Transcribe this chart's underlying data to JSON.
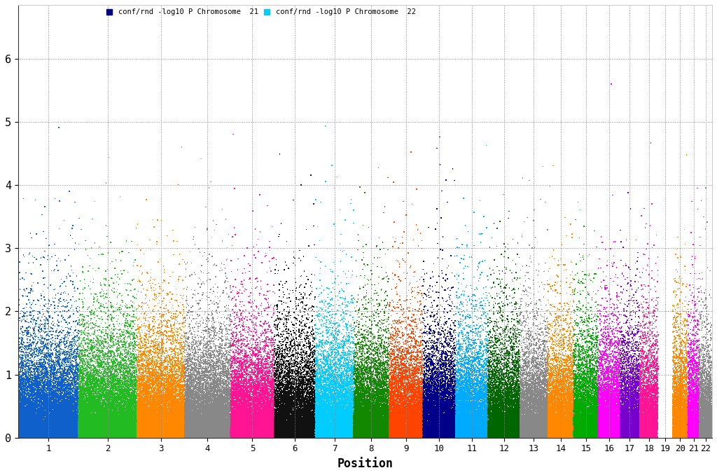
{
  "xlabel": "Position",
  "ylim": [
    0,
    6.85
  ],
  "yticks": [
    0,
    1,
    2,
    3,
    4,
    5,
    6
  ],
  "chromosomes": [
    1,
    2,
    3,
    4,
    5,
    6,
    7,
    8,
    9,
    10,
    11,
    12,
    13,
    14,
    15,
    16,
    17,
    18,
    19,
    20,
    21,
    22
  ],
  "chrom_color_map": {
    "1": "#1060cc",
    "2": "#22bb22",
    "3": "#ff8800",
    "4": "#888888",
    "5": "#ff1493",
    "6": "#111111",
    "7": "#00ccff",
    "8": "#118800",
    "9": "#ff4400",
    "10": "#000088",
    "11": "#00aaff",
    "12": "#006600",
    "13": "#888888",
    "14": "#ff8800",
    "15": "#00aa00",
    "16": "#ff00ff",
    "17": "#7700cc",
    "18": "#ff1493",
    "19": "#ffffff",
    "20": "#ff8800",
    "21": "#ff00ff",
    "22": "#888888"
  },
  "legend_label_odd": "conf/rnd -log10 P Chromosome  21",
  "legend_label_even": "conf/rnd -log10 P Chromosome  22",
  "legend_color_odd": "#000080",
  "legend_color_even": "#00ccff",
  "seed": 42,
  "background_color": "#ffffff",
  "grid_color": "#888888",
  "point_size": 1.2,
  "chrom_sizes": [
    248,
    242,
    198,
    190,
    181,
    170,
    159,
    146,
    141,
    135,
    134,
    133,
    115,
    107,
    102,
    90,
    81,
    78,
    59,
    63,
    48,
    51
  ]
}
